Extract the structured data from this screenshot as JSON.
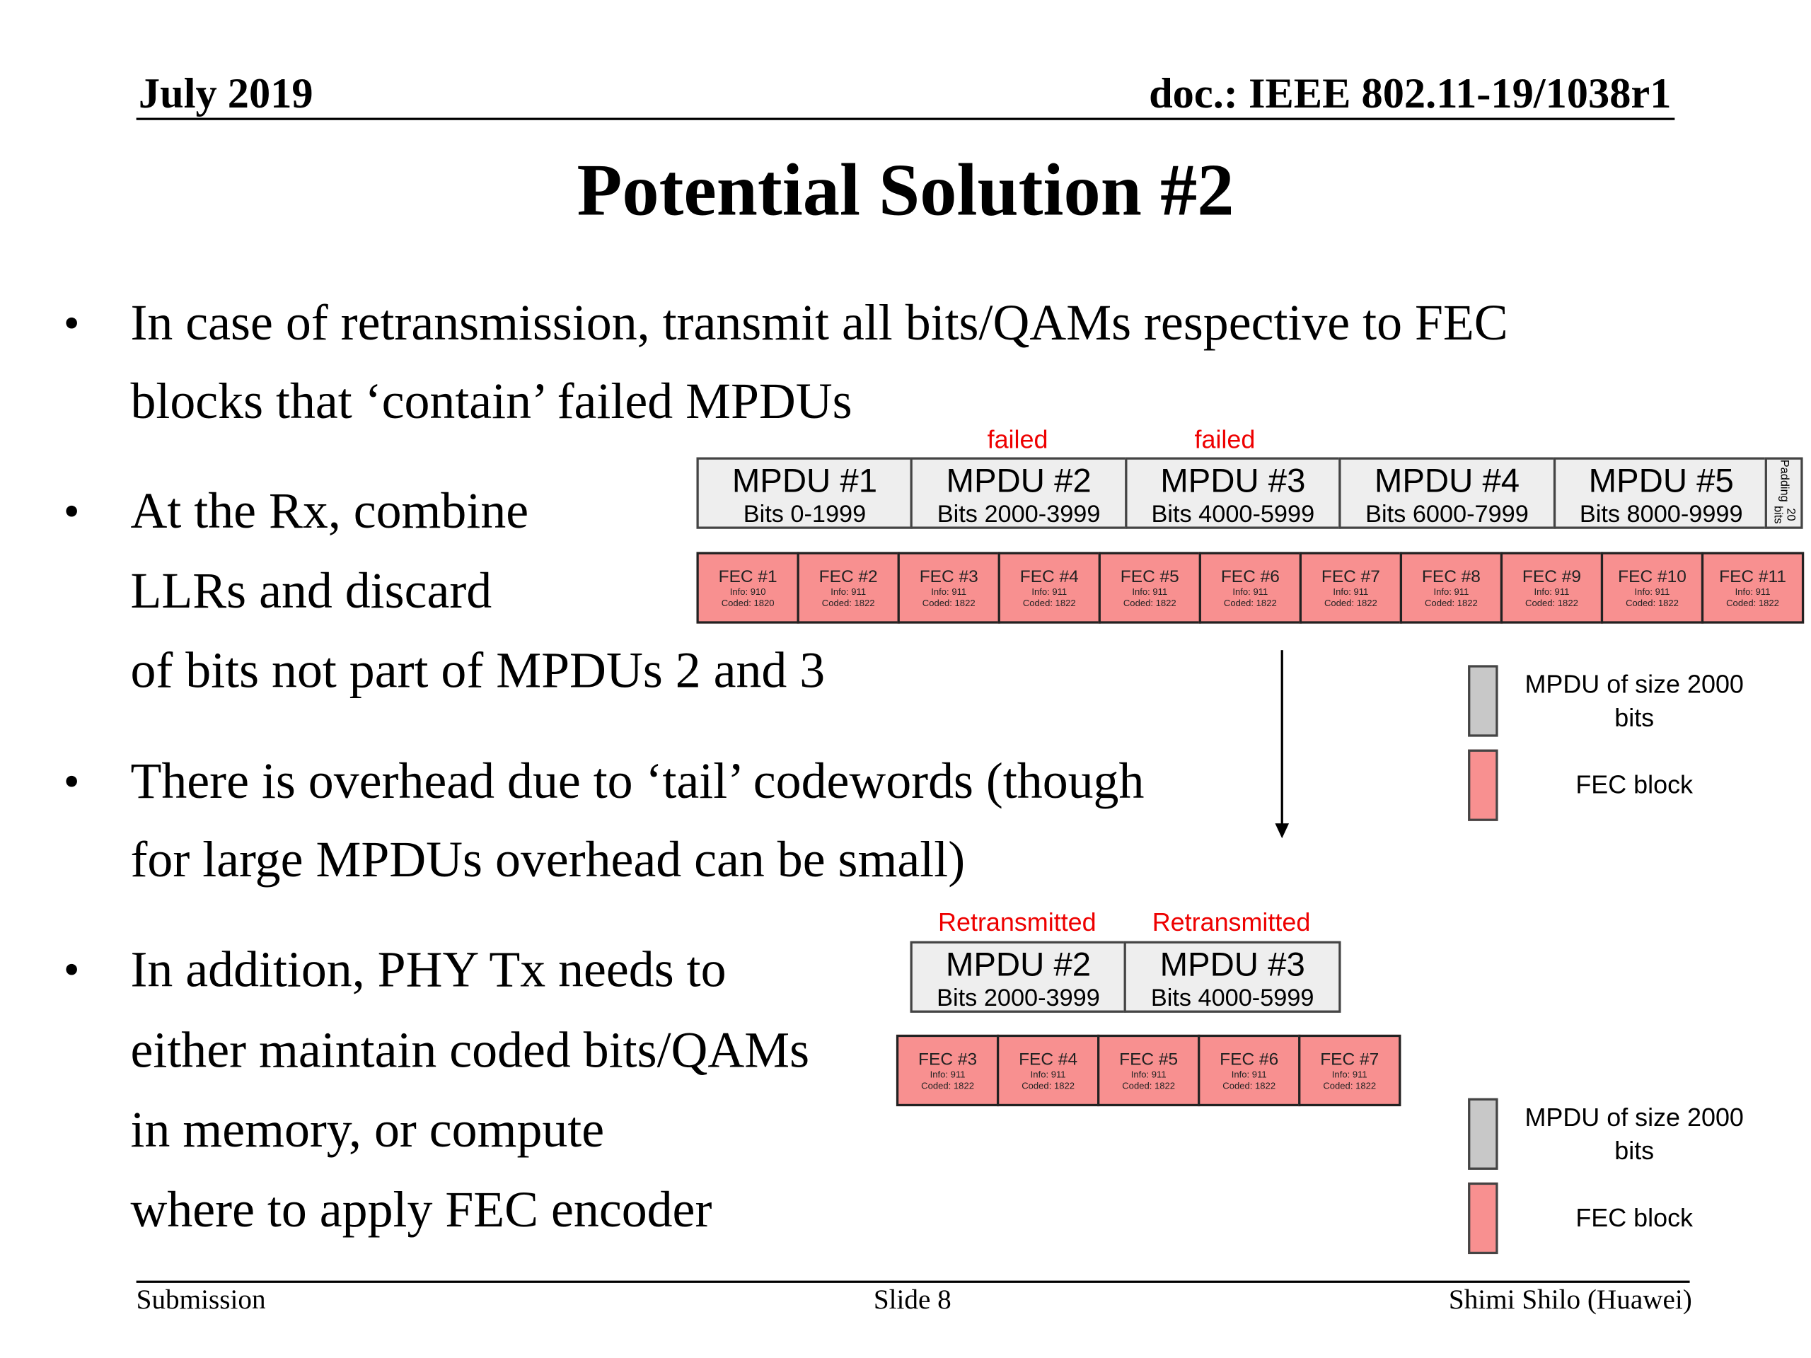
{
  "header": {
    "date": "July 2019",
    "doc": "doc.: IEEE 802.11-19/1038r1"
  },
  "title": "Potential Solution #2",
  "bullets": [
    {
      "lines": [
        "In case of retransmission, transmit all bits/QAMs respective to FEC",
        "blocks that ‘contain’ failed MPDUs"
      ]
    },
    {
      "lines": [
        "At the Rx, combine",
        "LLRs and discard",
        "of bits not part of MPDUs 2 and 3"
      ]
    },
    {
      "lines": [
        "There is overhead due to ‘tail’ codewords (though",
        "for large MPDUs overhead can be small)"
      ]
    },
    {
      "lines": [
        "In addition, PHY Tx needs to",
        "either maintain coded bits/QAMs",
        "in memory, or compute",
        "where to apply FEC encoder"
      ]
    }
  ],
  "bullet_char": "•",
  "diagram1": {
    "labels": [
      {
        "text": "failed",
        "mpdu": 1
      },
      {
        "text": "failed",
        "mpdu": 2
      }
    ],
    "mpdus": [
      {
        "name": "MPDU #1",
        "bits": "Bits 0-1999"
      },
      {
        "name": "MPDU #2",
        "bits": "Bits 2000-3999"
      },
      {
        "name": "MPDU #3",
        "bits": "Bits 4000-5999"
      },
      {
        "name": "MPDU #4",
        "bits": "Bits 6000-7999"
      },
      {
        "name": "MPDU #5",
        "bits": "Bits 8000-9999"
      }
    ],
    "padding": {
      "line1": "Padding",
      "line2": "20 bits"
    },
    "fecs": [
      {
        "name": "FEC #1",
        "info": "Info: 910",
        "coded": "Coded: 1820"
      },
      {
        "name": "FEC #2",
        "info": "Info: 911",
        "coded": "Coded: 1822"
      },
      {
        "name": "FEC #3",
        "info": "Info: 911",
        "coded": "Coded: 1822"
      },
      {
        "name": "FEC #4",
        "info": "Info: 911",
        "coded": "Coded: 1822"
      },
      {
        "name": "FEC #5",
        "info": "Info: 911",
        "coded": "Coded: 1822"
      },
      {
        "name": "FEC #6",
        "info": "Info: 911",
        "coded": "Coded: 1822"
      },
      {
        "name": "FEC #7",
        "info": "Info: 911",
        "coded": "Coded: 1822"
      },
      {
        "name": "FEC #8",
        "info": "Info: 911",
        "coded": "Coded: 1822"
      },
      {
        "name": "FEC #9",
        "info": "Info: 911",
        "coded": "Coded: 1822"
      },
      {
        "name": "FEC #10",
        "info": "Info: 911",
        "coded": "Coded: 1822"
      },
      {
        "name": "FEC #11",
        "info": "Info: 911",
        "coded": "Coded: 1822"
      }
    ]
  },
  "diagram2": {
    "labels": [
      "Retransmitted",
      "Retransmitted"
    ],
    "mpdus": [
      {
        "name": "MPDU #2",
        "bits": "Bits 2000-3999"
      },
      {
        "name": "MPDU #3",
        "bits": "Bits 4000-5999"
      }
    ],
    "fecs": [
      {
        "name": "FEC #3",
        "info": "Info: 911",
        "coded": "Coded: 1822"
      },
      {
        "name": "FEC #4",
        "info": "Info: 911",
        "coded": "Coded: 1822"
      },
      {
        "name": "FEC #5",
        "info": "Info: 911",
        "coded": "Coded: 1822"
      },
      {
        "name": "FEC #6",
        "info": "Info: 911",
        "coded": "Coded: 1822"
      },
      {
        "name": "FEC #7",
        "info": "Info: 911",
        "coded": "Coded: 1822"
      }
    ]
  },
  "legend": {
    "mpdu_line1": "MPDU of size 2000",
    "mpdu_line2": "bits",
    "fec": "FEC block"
  },
  "colors": {
    "mpdu": "#eeeeee",
    "fec": "#f89090",
    "failed": "#ee0000",
    "legend_mpdu": "#c8c8c8"
  },
  "footer": {
    "left": "Submission",
    "center": "Slide 8",
    "right": "Shimi Shilo (Huawei)"
  }
}
